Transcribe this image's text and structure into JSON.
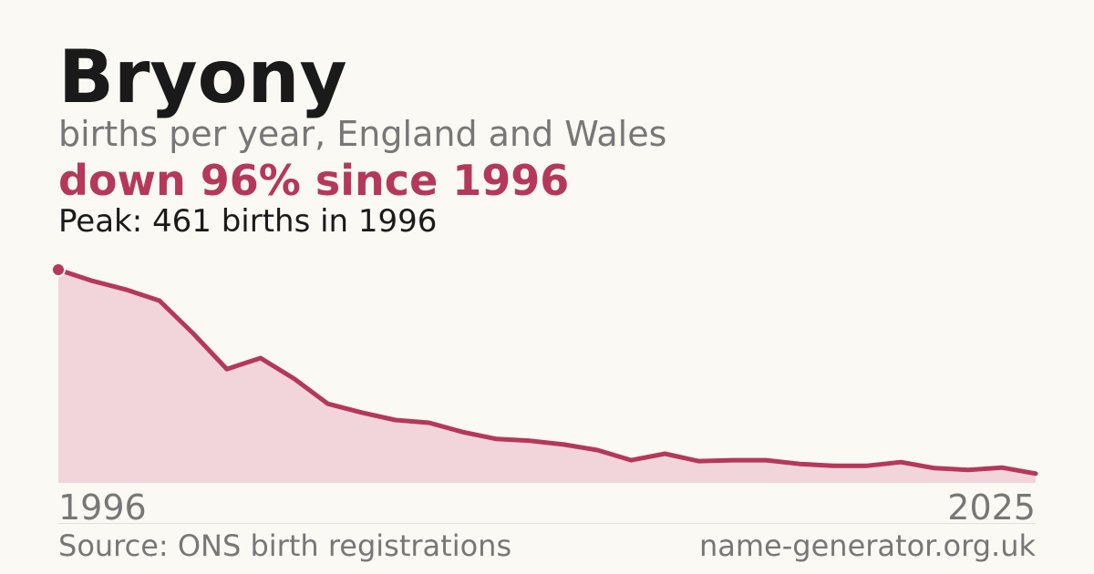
{
  "chart_data": {
    "type": "area",
    "title": "Bryony",
    "subtitle": "births per year, England and Wales",
    "headline": "down 96% since 1996",
    "annotation": "Peak: 461 births in 1996",
    "source": "Source: ONS birth registrations",
    "site": "name-generator.org.uk",
    "x": [
      1996,
      1997,
      1998,
      1999,
      2000,
      2001,
      2002,
      2003,
      2004,
      2005,
      2006,
      2007,
      2008,
      2009,
      2010,
      2011,
      2012,
      2013,
      2014,
      2015,
      2016,
      2017,
      2018,
      2019,
      2020,
      2021,
      2022,
      2023,
      2024,
      2025
    ],
    "values": [
      461,
      437,
      418,
      394,
      323,
      246,
      270,
      225,
      171,
      152,
      136,
      130,
      110,
      95,
      91,
      83,
      71,
      49,
      63,
      47,
      49,
      49,
      41,
      37,
      37,
      45,
      32,
      28,
      33,
      20
    ],
    "color": "#b5385a",
    "fill": "#f2d5db",
    "xlim": [
      1996,
      2025
    ],
    "xticks": [
      1996,
      2025
    ],
    "ylim": [
      0,
      461
    ]
  }
}
